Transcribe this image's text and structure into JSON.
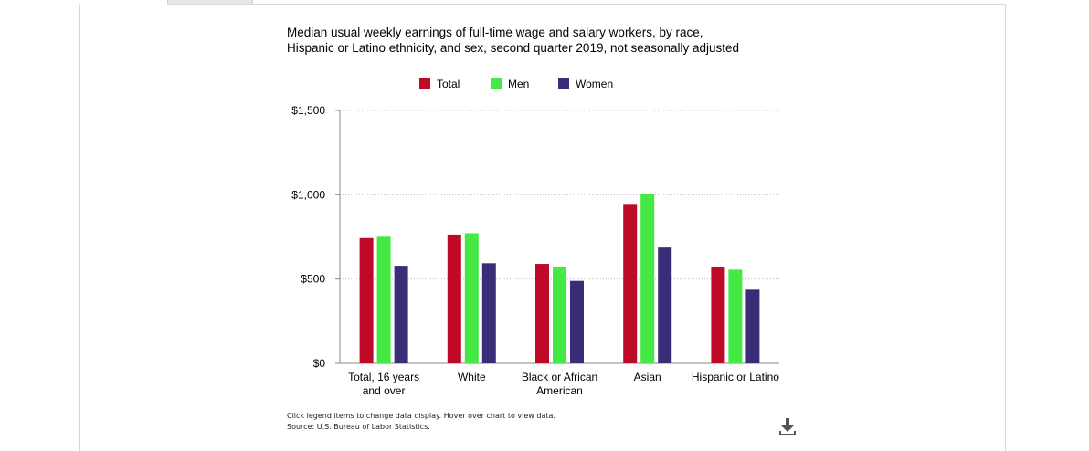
{
  "chart_data": {
    "type": "bar",
    "title_lines": [
      "Median usual weekly earnings of full-time wage and salary workers, by race,",
      "Hispanic or Latino ethnicity, and sex, second quarter 2019, not seasonally adjusted"
    ],
    "categories": [
      [
        "Total, 16 years",
        "and over"
      ],
      [
        "White"
      ],
      [
        "Black or African",
        "American"
      ],
      [
        "Asian"
      ],
      [
        "Hispanic or Latino"
      ]
    ],
    "series": [
      {
        "name": "Total",
        "color": "#be0a26",
        "values": [
          743,
          764,
          590,
          946,
          570
        ]
      },
      {
        "name": "Men",
        "color": "#44e944",
        "values": [
          751,
          772,
          570,
          1004,
          556
        ]
      },
      {
        "name": "Women",
        "color": "#3a2d78",
        "values": [
          579,
          594,
          489,
          687,
          437
        ]
      }
    ],
    "ylim": [
      0,
      1500
    ],
    "yticks": [
      {
        "value": 0,
        "label": "$0"
      },
      {
        "value": 500,
        "label": "$500"
      },
      {
        "value": 1000,
        "label": "$1,000"
      },
      {
        "value": 1500,
        "label": "$1,500"
      }
    ],
    "grid": true,
    "legend_position": "top-center"
  },
  "footnote": {
    "line1": "Click legend items to change data display. Hover over chart to view data.",
    "line2": "Source: U.S. Bureau of Labor Statistics."
  },
  "icons": {
    "download": "download-icon"
  }
}
